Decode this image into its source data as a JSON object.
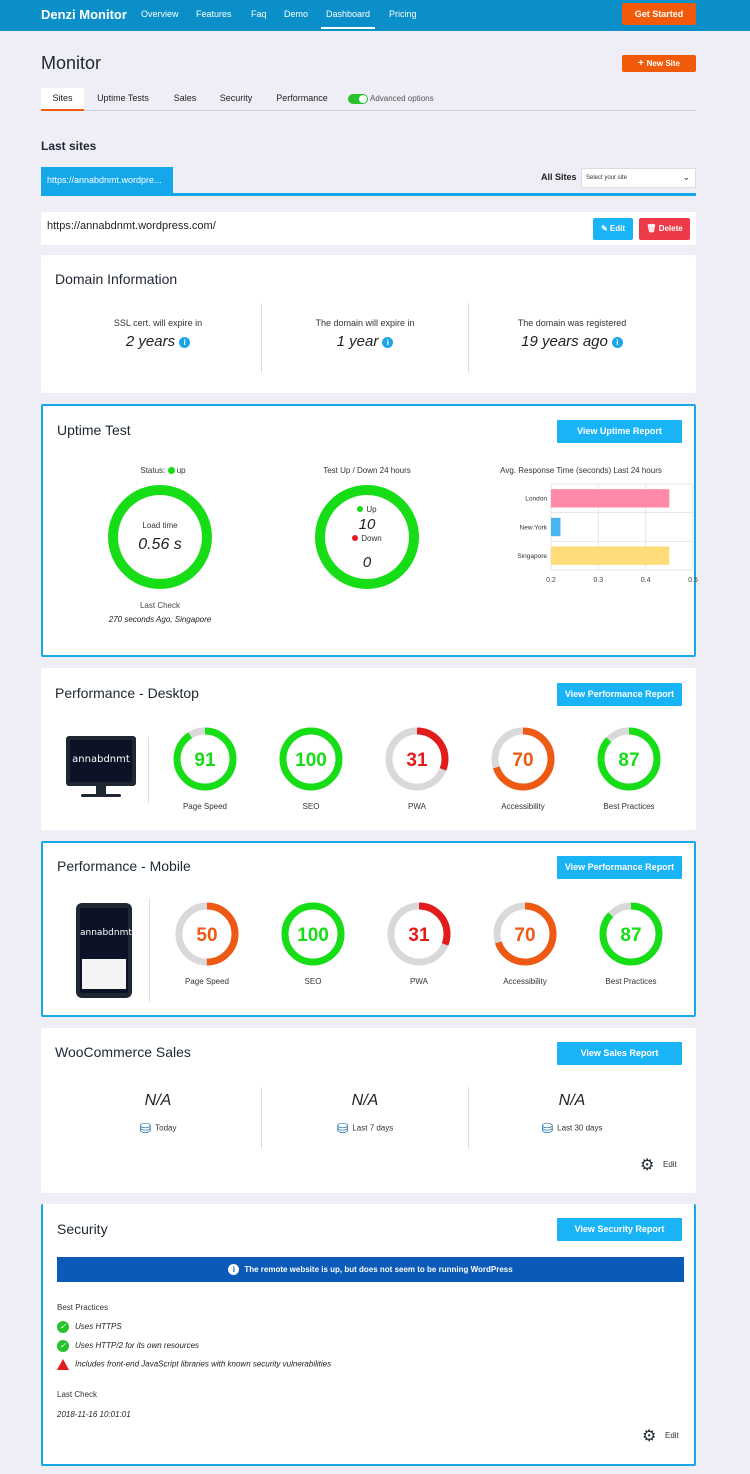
{
  "nav": {
    "brand": "Denzi Monitor",
    "links": [
      "Overview",
      "Features",
      "Faq",
      "Demo",
      "Dashboard",
      "Pricing"
    ],
    "active": "Dashboard",
    "cta": "Get Started"
  },
  "page": {
    "title": "Monitor",
    "new_site": "New Site",
    "tabs": [
      "Sites",
      "Uptime Tests",
      "Sales",
      "Security",
      "Performance"
    ],
    "active_tab": "Sites",
    "advanced_options": "Advanced options",
    "last_sites": "Last sites",
    "site_tab": "https://annabdnmt.wordpre...",
    "all_sites_label": "All Sites",
    "site_select_placeholder": "Select your site"
  },
  "site": {
    "url": "https://annabdnmt.wordpress.com/",
    "edit": "Edit",
    "delete": "Delete"
  },
  "domain": {
    "title": "Domain Information",
    "cols": [
      {
        "label": "SSL cert. will expire in",
        "value": "2 years"
      },
      {
        "label": "The domain will expire in",
        "value": "1 year"
      },
      {
        "label": "The domain was registered",
        "value": "19 years ago"
      }
    ]
  },
  "uptime": {
    "title": "Uptime Test",
    "button": "View Uptime Report",
    "status_label": "Status:",
    "status": "up",
    "load_time_label": "Load time",
    "load_time": "0.56 s",
    "last_check_label": "Last Check",
    "last_check": "270 seconds Ago, Singapore",
    "updown_title": "Test Up / Down 24 hours",
    "up_label": "Up",
    "up": "10",
    "down_label": "Down",
    "down": "0",
    "response_title": "Avg. Response Time (seconds) Last 24 hours",
    "colors": {
      "up": "#16dd16",
      "down": "#e21b1b"
    }
  },
  "chart_data": {
    "type": "bar",
    "orientation": "horizontal",
    "title": "Avg. Response Time (seconds) Last 24 hours",
    "categories": [
      "London",
      "New York",
      "Singapore"
    ],
    "values": [
      0.45,
      0.22,
      0.45
    ],
    "colors": [
      "#ff8aa8",
      "#48b4f0",
      "#ffdd7a"
    ],
    "xlim": [
      0.2,
      0.5
    ],
    "xticks": [
      "0.2",
      "0.3",
      "0.4",
      "0.5"
    ],
    "grid": true
  },
  "perf_desktop": {
    "title": "Performance - Desktop",
    "button": "View Performance Report",
    "device_label": "annabdnmt",
    "scores": [
      {
        "label": "Page Speed",
        "value": 91,
        "color": "#16dd16"
      },
      {
        "label": "SEO",
        "value": 100,
        "color": "#16dd16"
      },
      {
        "label": "PWA",
        "value": 31,
        "color": "#e21b1b"
      },
      {
        "label": "Accessibility",
        "value": 70,
        "color": "#ee5a14"
      },
      {
        "label": "Best Practices",
        "value": 87,
        "color": "#16dd16"
      }
    ]
  },
  "perf_mobile": {
    "title": "Performance - Mobile",
    "button": "View Performance Report",
    "device_label": "annabdnmt",
    "scores": [
      {
        "label": "Page Speed",
        "value": 50,
        "color": "#ee5a14"
      },
      {
        "label": "SEO",
        "value": 100,
        "color": "#16dd16"
      },
      {
        "label": "PWA",
        "value": 31,
        "color": "#e21b1b"
      },
      {
        "label": "Accessibility",
        "value": 70,
        "color": "#ee5a14"
      },
      {
        "label": "Best Practices",
        "value": 87,
        "color": "#16dd16"
      }
    ]
  },
  "sales": {
    "title": "WooCommerce Sales",
    "button": "View Sales Report",
    "cols": [
      {
        "value": "N/A",
        "label": "Today"
      },
      {
        "value": "N/A",
        "label": "Last 7 days"
      },
      {
        "value": "N/A",
        "label": "Last 30 days"
      }
    ],
    "edit": "Edit"
  },
  "security": {
    "title": "Security",
    "button": "View Security Report",
    "banner": "The remote website is up, but does not seem to be running WordPress",
    "best_practices_label": "Best Practices",
    "items": [
      {
        "text": "Uses HTTPS",
        "status": "ok"
      },
      {
        "text": "Uses HTTP/2 for its own resources",
        "status": "ok"
      },
      {
        "text": "Includes front-end JavaScript libraries with known security vulnerabilities",
        "status": "warn"
      }
    ],
    "last_check_label": "Last Check",
    "last_check": "2018-11-16 10:01:01",
    "edit": "Edit"
  }
}
